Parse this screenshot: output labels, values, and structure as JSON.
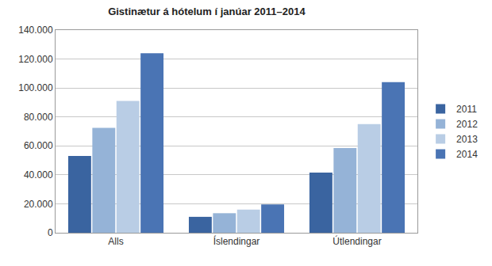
{
  "chart_data": {
    "type": "bar",
    "title": "Gistinætur á hótelum í janúar 2011–2014",
    "categories": [
      "Alls",
      "Íslendingar",
      "Útlendingar"
    ],
    "series": [
      {
        "name": "2011",
        "color": "#3a64a0",
        "values": [
          53000,
          11000,
          41500
        ]
      },
      {
        "name": "2012",
        "color": "#95b3d7",
        "values": [
          72500,
          13500,
          58500
        ]
      },
      {
        "name": "2013",
        "color": "#b9cde5",
        "values": [
          91000,
          16000,
          75000
        ]
      },
      {
        "name": "2014",
        "color": "#4a74b4",
        "values": [
          124000,
          19500,
          104000
        ]
      }
    ],
    "ylim": [
      0,
      140000
    ],
    "yticks": [
      0,
      {
        "value": 20000,
        "label": "20.000"
      },
      {
        "value": 40000,
        "label": "40.000"
      },
      {
        "value": 60000,
        "label": "60.000"
      },
      {
        "value": 80000,
        "label": "80.000"
      },
      {
        "value": 100000,
        "label": "100.000"
      },
      {
        "value": 120000,
        "label": "120.000"
      },
      {
        "value": 140000,
        "label": "140.000"
      }
    ],
    "grid": true,
    "legend": "right"
  }
}
